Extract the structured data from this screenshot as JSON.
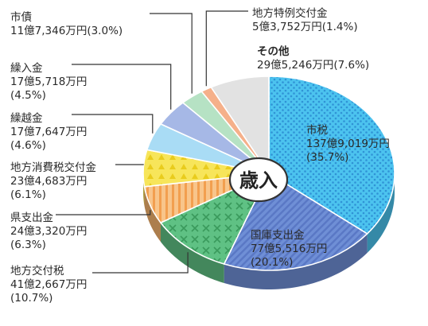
{
  "chart_data": {
    "type": "pie",
    "title": "歳入",
    "slices": [
      {
        "name": "市税",
        "amount": "137億9,019万円",
        "value": 35.7,
        "pct": "(35.7%)",
        "color": "#4cc3ef",
        "pattern": "dots"
      },
      {
        "name": "国庫支出金",
        "amount": "77億5,516万円",
        "value": 20.1,
        "pct": "(20.1%)",
        "color": "#6f8fd6",
        "pattern": "diag"
      },
      {
        "name": "地方交付税",
        "amount": "41億2,667万円",
        "value": 10.7,
        "pct": "(10.7%)",
        "color": "#5fc184",
        "pattern": "cross"
      },
      {
        "name": "県支出金",
        "amount": "24億3,320万円",
        "value": 6.3,
        "pct": "(6.3%)",
        "color": "#f6b46e",
        "pattern": "vstripe"
      },
      {
        "name": "地方消費税交付金",
        "amount": "23億4,683万円",
        "value": 6.1,
        "pct": "(6.1%)",
        "color": "#f7e55a",
        "pattern": "tri"
      },
      {
        "name": "繰越金",
        "amount": "17億7,647万円",
        "value": 4.6,
        "pct": "(4.6%)",
        "color": "#a9dcf5",
        "pattern": "none"
      },
      {
        "name": "繰入金",
        "amount": "17億5,718万円",
        "value": 4.5,
        "pct": "(4.5%)",
        "color": "#a6b8e6",
        "pattern": "none"
      },
      {
        "name": "市債",
        "amount": "11億7,346万円",
        "value": 3.0,
        "pct": "(3.0%)",
        "color": "#b6e2c4",
        "pattern": "none"
      },
      {
        "name": "地方特例交付金",
        "amount": "5億3,752万円",
        "value": 1.4,
        "pct": "(1.4%)",
        "color": "#f5b08a",
        "pattern": "none"
      },
      {
        "name": "その他",
        "amount": "29億5,246万円",
        "value": 7.6,
        "pct": "(7.6%)",
        "color": "#e2e2e2",
        "pattern": "none"
      }
    ]
  }
}
